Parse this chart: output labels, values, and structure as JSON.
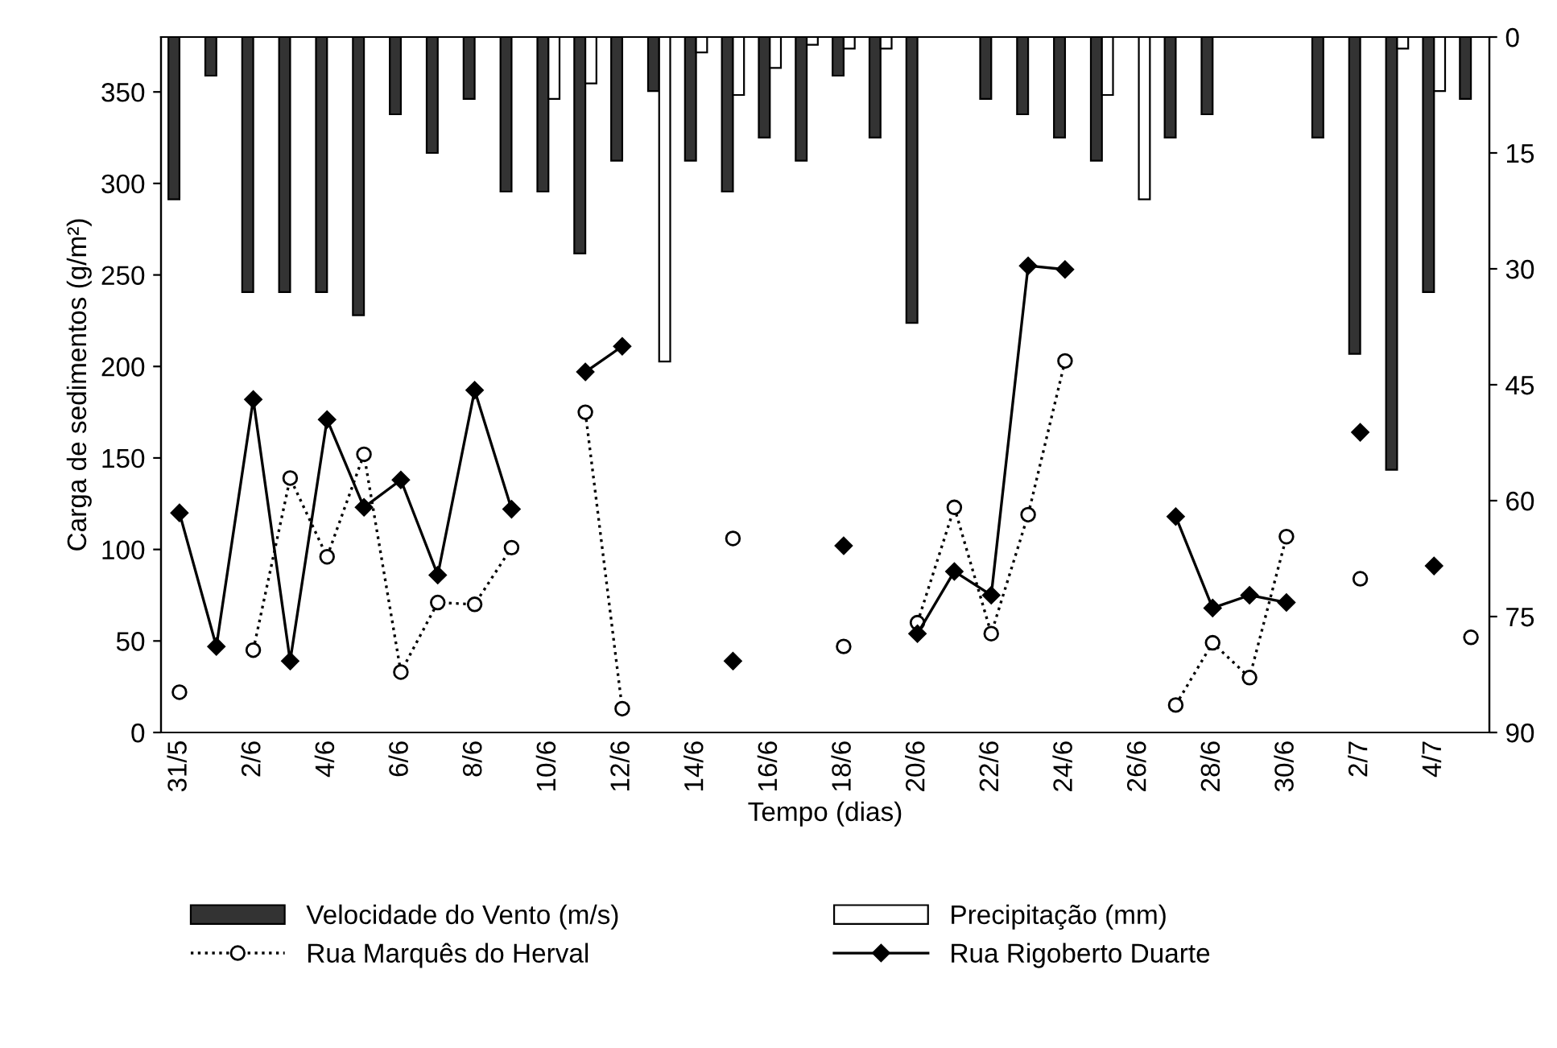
{
  "chart_data": {
    "type": "line",
    "xlabel": "Tempo (dias)",
    "ylabel": "Carga de sedimentos (g/m²)",
    "categories": [
      "31/5",
      null,
      "2/6",
      null,
      "4/6",
      null,
      "6/6",
      null,
      "8/6",
      null,
      "10/6",
      null,
      "12/6",
      null,
      "14/6",
      null,
      "16/6",
      null,
      "18/6",
      null,
      "20/6",
      null,
      "22/6",
      null,
      "24/6",
      null,
      "26/6",
      null,
      "28/6",
      null,
      "30/6",
      null,
      "2/7",
      null,
      "4/7",
      null
    ],
    "series": [
      {
        "name": "Velocidade do Vento (m/s)",
        "type": "bar",
        "axis": "y2",
        "color": "#333333",
        "values": [
          21,
          5,
          33,
          33,
          33,
          36,
          10,
          15,
          8,
          20,
          20,
          28,
          16,
          7,
          16,
          20,
          13,
          16,
          5,
          13,
          37,
          null,
          8,
          10,
          13,
          16,
          null,
          13,
          10,
          null,
          null,
          13,
          41,
          56,
          33,
          8
        ]
      },
      {
        "name": "Precipitação (mm)",
        "type": "bar",
        "axis": "y2",
        "color": "#ffffff",
        "values": [
          null,
          null,
          null,
          null,
          null,
          null,
          null,
          null,
          null,
          null,
          8,
          6,
          null,
          42,
          2,
          7.5,
          4,
          1,
          1.5,
          1.5,
          null,
          null,
          null,
          null,
          null,
          7.5,
          21,
          null,
          null,
          null,
          null,
          null,
          null,
          1.5,
          7,
          null
        ]
      },
      {
        "name": "Rua Marquês do Herval",
        "color": "#000000",
        "marker": "circle",
        "line_style": "dotted",
        "values": [
          22,
          null,
          45,
          139,
          96,
          152,
          33,
          71,
          70,
          101,
          null,
          175,
          13,
          null,
          null,
          106,
          null,
          null,
          47,
          null,
          60,
          123,
          54,
          119,
          203,
          null,
          null,
          15,
          49,
          30,
          107,
          null,
          84,
          null,
          null,
          52
        ]
      },
      {
        "name": "Rua Rigoberto Duarte",
        "color": "#000000",
        "marker": "diamond",
        "line_style": "solid",
        "values": [
          120,
          47,
          182,
          39,
          171,
          123,
          138,
          86,
          187,
          122,
          null,
          197,
          211,
          null,
          null,
          39,
          null,
          null,
          102,
          null,
          54,
          88,
          75,
          255,
          253,
          null,
          null,
          118,
          68,
          75,
          71,
          null,
          164,
          null,
          91,
          null
        ]
      }
    ],
    "ylim": [
      0,
      380
    ],
    "yticks": [
      0,
      50,
      100,
      150,
      200,
      250,
      300,
      350
    ],
    "y2lim": [
      90,
      0
    ],
    "y2ticks": [
      0,
      15,
      30,
      45,
      60,
      75,
      90
    ],
    "grid": false,
    "legend": "bottom"
  }
}
